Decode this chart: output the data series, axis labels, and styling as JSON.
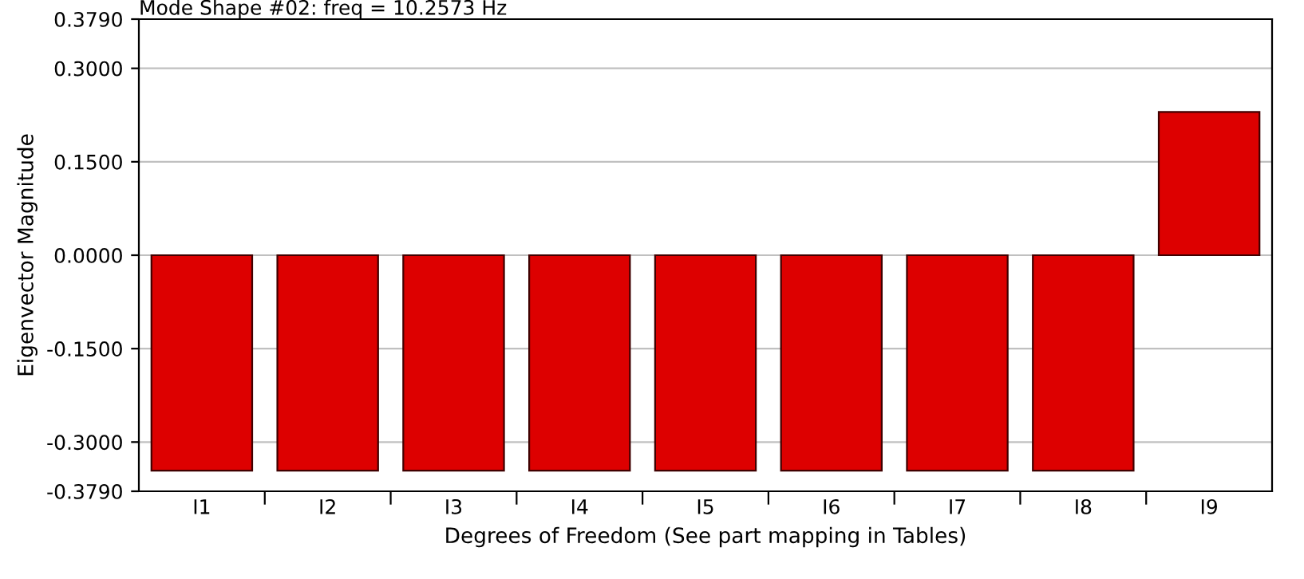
{
  "chart_data": {
    "type": "bar",
    "title": "Mode Shape #02: freq = 10.2573 Hz",
    "xlabel": "Degrees of Freedom (See part mapping in Tables)",
    "ylabel": "Eigenvector Magnitude",
    "categories": [
      "I1",
      "I2",
      "I3",
      "I4",
      "I5",
      "I6",
      "I7",
      "I8",
      "I9"
    ],
    "values": [
      -0.346,
      -0.346,
      -0.346,
      -0.346,
      -0.346,
      -0.346,
      -0.346,
      -0.346,
      0.23
    ],
    "color": "#dd0000",
    "ylim": [
      -0.379,
      0.379
    ],
    "yticks": [
      {
        "value": -0.379,
        "label": "-0.3790"
      },
      {
        "value": -0.3,
        "label": "-0.3000"
      },
      {
        "value": -0.15,
        "label": "-0.1500"
      },
      {
        "value": 0,
        "label": "0.0000"
      },
      {
        "value": 0.15,
        "label": "0.1500"
      },
      {
        "value": 0.3,
        "label": "0.3000"
      },
      {
        "value": 0.379,
        "label": "0.3790"
      }
    ],
    "grid": "y"
  }
}
